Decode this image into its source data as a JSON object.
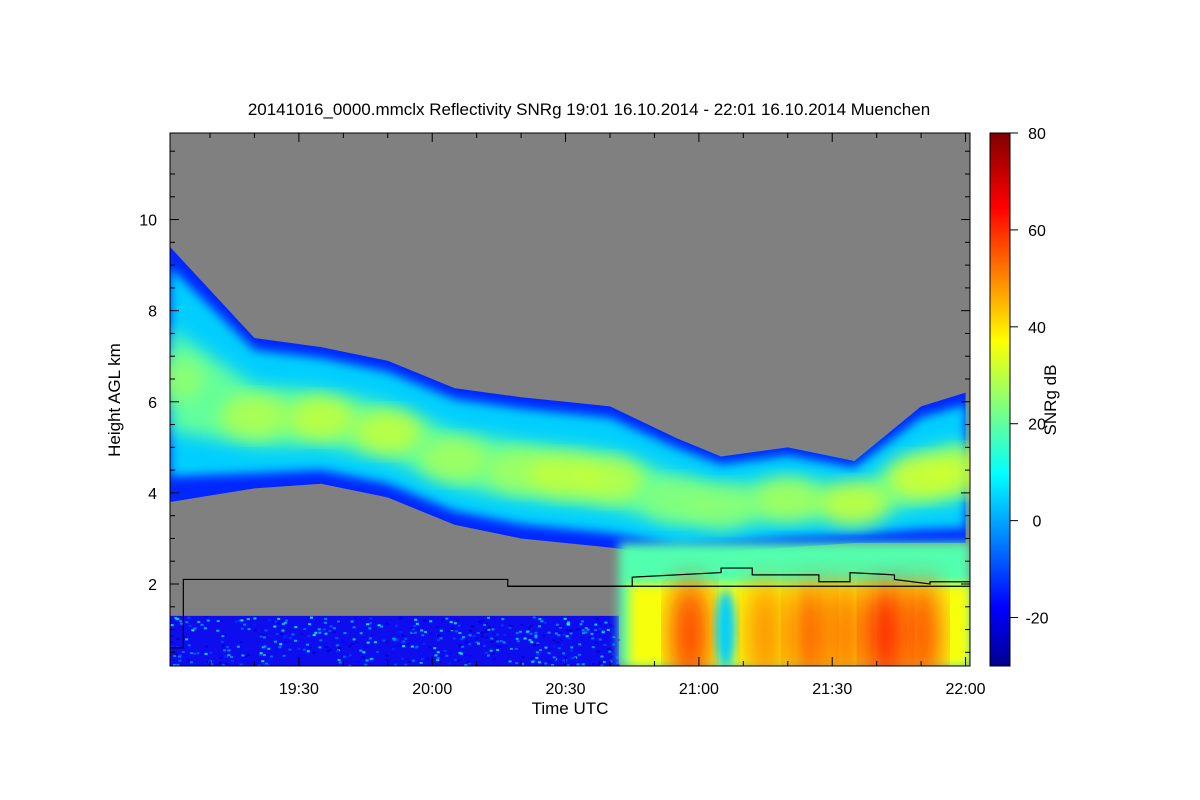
{
  "chart_data": {
    "type": "heatmap",
    "title": "20141016_0000.mmclx Reflectivity SNRg   19:01 16.10.2014 - 22:01 16.10.2014 Muenchen",
    "xlabel": "Time UTC",
    "ylabel": "Height AGL km",
    "colorbar_label": "SNRg dB",
    "x_range": [
      "19:01",
      "22:01"
    ],
    "x_ticks": [
      "19:30",
      "20:00",
      "20:30",
      "21:00",
      "21:30",
      "22:00"
    ],
    "y_range": [
      0.2,
      11.9
    ],
    "y_ticks": [
      2,
      4,
      6,
      8,
      10
    ],
    "colorbar_range": [
      -30,
      80
    ],
    "colorbar_ticks": [
      -20,
      0,
      20,
      40,
      60,
      80
    ],
    "colormap": "jet",
    "no_signal_color": "#808080",
    "features": {
      "upper_cloud_layer": {
        "times": [
          "19:01",
          "19:20",
          "19:35",
          "19:50",
          "20:05",
          "20:20",
          "20:30",
          "20:40",
          "20:55",
          "21:05",
          "21:20",
          "21:35",
          "21:50",
          "22:00"
        ],
        "top_km": [
          9.4,
          7.4,
          7.2,
          6.9,
          6.3,
          6.1,
          6.0,
          5.9,
          5.2,
          4.8,
          5.0,
          4.7,
          5.9,
          6.2
        ],
        "base_km": [
          3.8,
          4.1,
          4.2,
          3.9,
          3.3,
          3.0,
          2.9,
          2.8,
          2.6,
          2.7,
          2.8,
          2.9,
          2.9,
          2.9
        ],
        "peak_snr_db": [
          28,
          32,
          34,
          34,
          30,
          30,
          34,
          33,
          26,
          27,
          30,
          34,
          36,
          35
        ]
      },
      "precipitation_region": {
        "start_time": "20:42",
        "end_time": "22:01",
        "top_km": 2.0,
        "peak_snr_db": 66
      },
      "boundary_layer_clutter": {
        "start_time": "19:01",
        "end_time": "20:42",
        "top_km": 1.3,
        "snr_db_range": [
          -25,
          10
        ]
      }
    },
    "boundary_line": {
      "color": "#000000",
      "times": [
        "19:01",
        "19:04",
        "19:04",
        "20:17",
        "20:17",
        "20:45",
        "20:45",
        "21:05",
        "21:05",
        "21:12",
        "21:12",
        "21:27",
        "21:27",
        "21:34",
        "21:34",
        "21:44",
        "21:44",
        "21:52",
        "21:52",
        "22:01"
      ],
      "height_km": [
        0.6,
        0.6,
        2.1,
        2.1,
        1.95,
        1.95,
        2.15,
        2.25,
        2.35,
        2.35,
        2.2,
        2.2,
        2.05,
        2.05,
        2.25,
        2.2,
        2.1,
        2.0,
        2.05,
        2.05
      ]
    },
    "reference_line": {
      "color": "#000000",
      "height_km": 1.95,
      "from_time": "20:17",
      "to_time": "22:01"
    },
    "grid": false,
    "legend": "colorbar-right"
  }
}
